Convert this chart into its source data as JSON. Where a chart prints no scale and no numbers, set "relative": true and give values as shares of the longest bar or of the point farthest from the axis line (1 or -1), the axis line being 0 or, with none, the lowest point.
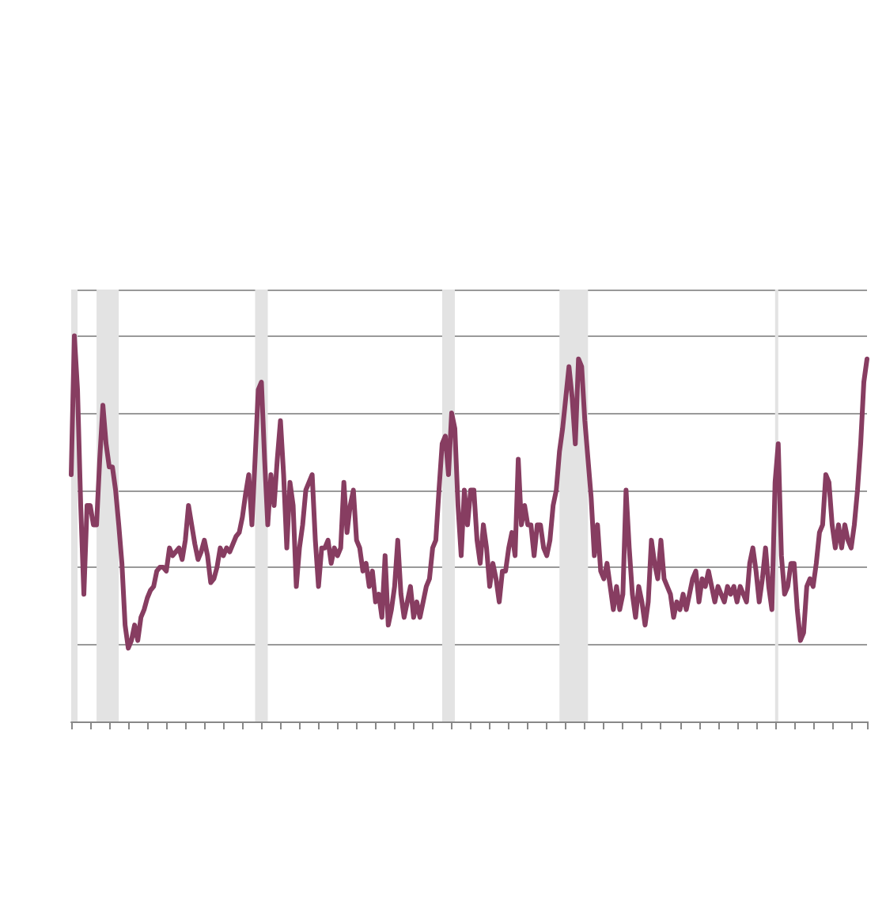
{
  "chart_data": {
    "type": "line",
    "relative": true,
    "grid": "y",
    "line_style": "solid",
    "categories": [
      null,
      null,
      null,
      null,
      null,
      null,
      null,
      null,
      null,
      null,
      null,
      null,
      null,
      null,
      null,
      null,
      null,
      null,
      null,
      null,
      null,
      null,
      null,
      null,
      null,
      null,
      null,
      null,
      null,
      null,
      null,
      null,
      null,
      null,
      null,
      null,
      null,
      null,
      null,
      null,
      null,
      null,
      null,
      null,
      null,
      null,
      null,
      null,
      null,
      null,
      null,
      null,
      null,
      null,
      null,
      null,
      null,
      null,
      null,
      null,
      null,
      null,
      null,
      null,
      null,
      null,
      null,
      null,
      null,
      null,
      null,
      null,
      null,
      null,
      null,
      null,
      null,
      null,
      null,
      null,
      null,
      null,
      null,
      null,
      null,
      null,
      null,
      null,
      null,
      null,
      null,
      null,
      null,
      null,
      null,
      null,
      null,
      null,
      null,
      null,
      null,
      null,
      null,
      null,
      null,
      null,
      null,
      null,
      null,
      null,
      null,
      null,
      null,
      null,
      null,
      null,
      null,
      null,
      null,
      null,
      null,
      null,
      null,
      null,
      null,
      null,
      null,
      null,
      null,
      null,
      null,
      null,
      null,
      null,
      null,
      null,
      null,
      null,
      null,
      null,
      null,
      null,
      null,
      null,
      null,
      null,
      null,
      null,
      null,
      null,
      null,
      null,
      null,
      null,
      null,
      null,
      null,
      null,
      null,
      null,
      null,
      null,
      null,
      null,
      null,
      null,
      null,
      null,
      null,
      null,
      null,
      null,
      null,
      null,
      null,
      null,
      null,
      null,
      null,
      null,
      null,
      null,
      null,
      null,
      null,
      null,
      null,
      null,
      null,
      null,
      null,
      null,
      null,
      null,
      null,
      null,
      null,
      null,
      null,
      null,
      null,
      null,
      null,
      null,
      null,
      null,
      null,
      null,
      null,
      null,
      null,
      null,
      null,
      null,
      null,
      null,
      null,
      null,
      null,
      null,
      null,
      null,
      null,
      null,
      null,
      null,
      null,
      null,
      null,
      null,
      null,
      null,
      null,
      null,
      null,
      null,
      null,
      null,
      null,
      null,
      null,
      null,
      null,
      null,
      null,
      null,
      null,
      null,
      null,
      null,
      null,
      null
    ],
    "series": [
      {
        "color": "#873d61",
        "values": [
          0.64,
          1.0,
          0.86,
          0.56,
          0.33,
          0.56,
          0.56,
          0.51,
          0.51,
          0.68,
          0.82,
          0.72,
          0.66,
          0.66,
          0.6,
          0.51,
          0.41,
          0.25,
          0.19,
          0.21,
          0.25,
          0.21,
          0.27,
          0.29,
          0.32,
          0.34,
          0.35,
          0.39,
          0.4,
          0.4,
          0.39,
          0.45,
          0.43,
          0.44,
          0.45,
          0.42,
          0.47,
          0.56,
          0.51,
          0.46,
          0.42,
          0.44,
          0.47,
          0.43,
          0.36,
          0.37,
          0.4,
          0.45,
          0.43,
          0.45,
          0.44,
          0.46,
          0.48,
          0.49,
          0.53,
          0.59,
          0.64,
          0.51,
          0.68,
          0.86,
          0.88,
          0.68,
          0.51,
          0.64,
          0.56,
          0.68,
          0.78,
          0.64,
          0.45,
          0.62,
          0.56,
          0.35,
          0.45,
          0.51,
          0.6,
          0.62,
          0.64,
          0.47,
          0.35,
          0.45,
          0.45,
          0.47,
          0.41,
          0.45,
          0.43,
          0.45,
          0.62,
          0.49,
          0.56,
          0.6,
          0.47,
          0.45,
          0.39,
          0.41,
          0.35,
          0.39,
          0.31,
          0.33,
          0.27,
          0.43,
          0.25,
          0.29,
          0.35,
          0.47,
          0.33,
          0.27,
          0.31,
          0.35,
          0.27,
          0.31,
          0.27,
          0.31,
          0.35,
          0.37,
          0.45,
          0.47,
          0.6,
          0.72,
          0.74,
          0.64,
          0.8,
          0.76,
          0.56,
          0.43,
          0.6,
          0.51,
          0.6,
          0.6,
          0.47,
          0.41,
          0.51,
          0.45,
          0.35,
          0.41,
          0.37,
          0.31,
          0.39,
          0.39,
          0.45,
          0.49,
          0.43,
          0.68,
          0.51,
          0.56,
          0.51,
          0.51,
          0.43,
          0.51,
          0.51,
          0.45,
          0.43,
          0.47,
          0.56,
          0.6,
          0.7,
          0.76,
          0.84,
          0.92,
          0.84,
          0.72,
          0.94,
          0.92,
          0.78,
          0.68,
          0.58,
          0.43,
          0.51,
          0.39,
          0.37,
          0.41,
          0.35,
          0.29,
          0.35,
          0.29,
          0.33,
          0.6,
          0.45,
          0.33,
          0.27,
          0.35,
          0.31,
          0.25,
          0.31,
          0.47,
          0.41,
          0.37,
          0.47,
          0.37,
          0.35,
          0.33,
          0.27,
          0.31,
          0.29,
          0.33,
          0.29,
          0.33,
          0.37,
          0.39,
          0.31,
          0.37,
          0.35,
          0.39,
          0.35,
          0.31,
          0.35,
          0.33,
          0.31,
          0.35,
          0.33,
          0.35,
          0.31,
          0.35,
          0.33,
          0.31,
          0.41,
          0.45,
          0.39,
          0.31,
          0.37,
          0.45,
          0.35,
          0.29,
          0.62,
          0.72,
          0.43,
          0.33,
          0.35,
          0.41,
          0.41,
          0.29,
          0.21,
          0.23,
          0.35,
          0.37,
          0.35,
          0.41,
          0.49,
          0.51,
          0.64,
          0.62,
          0.51,
          0.45,
          0.51,
          0.45,
          0.51,
          0.47,
          0.45,
          0.51,
          0.6,
          0.72,
          0.88,
          0.94
        ]
      }
    ]
  }
}
